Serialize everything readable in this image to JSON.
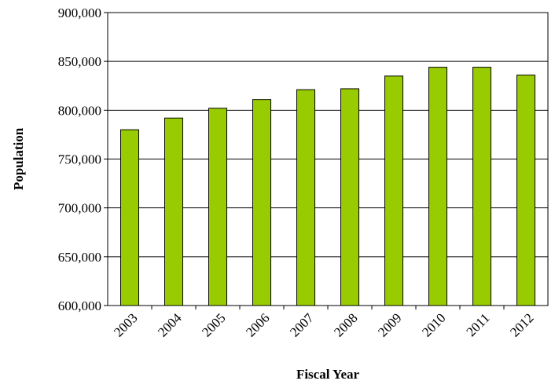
{
  "chart_data": {
    "type": "bar",
    "title": "",
    "xlabel": "Fiscal Year",
    "ylabel": "Population",
    "categories": [
      "2003",
      "2004",
      "2005",
      "2006",
      "2007",
      "2008",
      "2009",
      "2010",
      "2011",
      "2012"
    ],
    "values": [
      780000,
      792000,
      802000,
      811000,
      821000,
      822000,
      835000,
      844000,
      844000,
      836000
    ],
    "ylim": [
      600000,
      900000
    ],
    "yticks": [
      600000,
      650000,
      700000,
      750000,
      800000,
      850000,
      900000
    ],
    "ytick_labels": [
      "600,000",
      "650,000",
      "700,000",
      "750,000",
      "800,000",
      "850,000",
      "900,000"
    ],
    "grid": true,
    "legend": "none",
    "bar_color": "#99cc00"
  }
}
